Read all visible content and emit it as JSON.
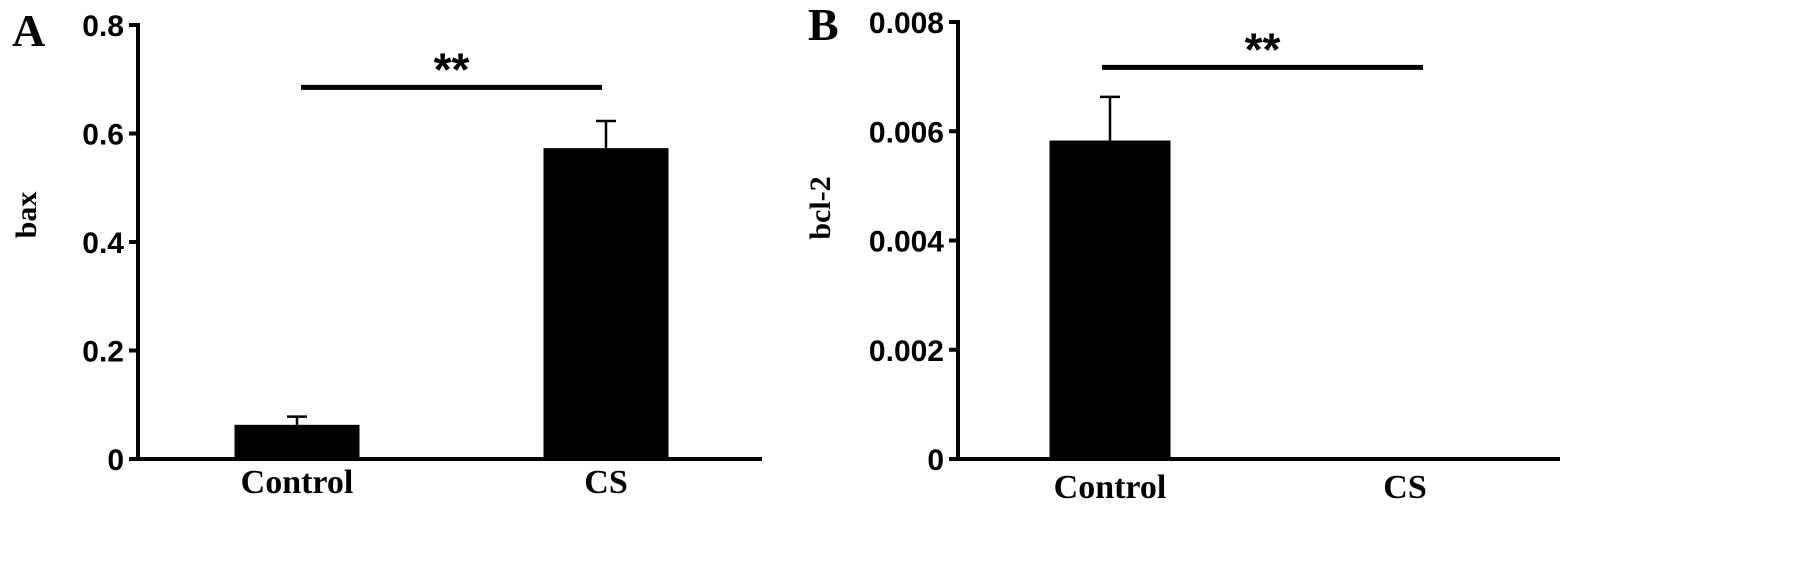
{
  "chart_data": [
    {
      "panel": "A",
      "type": "bar",
      "categories": [
        "Control",
        "CS"
      ],
      "values": [
        0.063,
        0.573
      ],
      "errors": [
        0.015,
        0.05
      ],
      "ylabel": "bax",
      "xlabel": "",
      "ylim": [
        0,
        0.8
      ],
      "yticks": [
        "0",
        "0.2",
        "0.4",
        "0.6",
        "0.8"
      ],
      "yticks_values": [
        0,
        0.2,
        0.4,
        0.6,
        0.8
      ],
      "significance": {
        "label": "**",
        "between": [
          "Control",
          "CS"
        ],
        "level": 0.685
      },
      "bar_color": "#000000",
      "grid": false
    },
    {
      "panel": "B",
      "type": "bar",
      "categories": [
        "Control",
        "CS"
      ],
      "values": [
        0.00583,
        0
      ],
      "errors": [
        0.0008,
        0
      ],
      "ylabel": "bcl-2",
      "xlabel": "",
      "ylim": [
        0,
        0.008
      ],
      "yticks": [
        "0",
        "0.002",
        "0.004",
        "0.006",
        "0.008"
      ],
      "yticks_values": [
        0,
        0.002,
        0.004,
        0.006,
        0.008
      ],
      "significance": {
        "label": "**",
        "between": [
          "Control",
          "CS"
        ],
        "level": 0.00717
      },
      "bar_color": "#000000",
      "grid": false
    }
  ]
}
